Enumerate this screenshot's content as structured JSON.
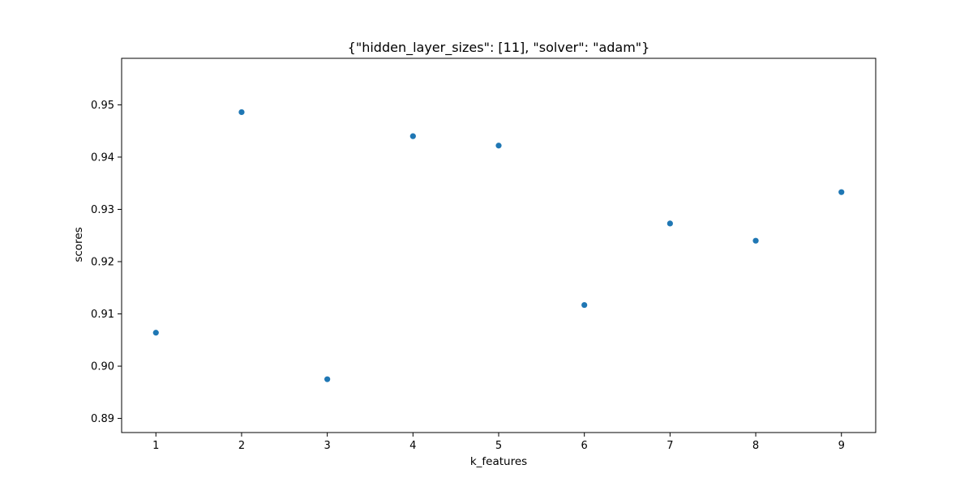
{
  "chart_data": {
    "type": "scatter",
    "title": "{\"hidden_layer_sizes\": [11], \"solver\": \"adam\"}",
    "xlabel": "k_features",
    "ylabel": "scores",
    "x": [
      1,
      2,
      3,
      4,
      5,
      6,
      7,
      8,
      9
    ],
    "y": [
      0.9064,
      0.9486,
      0.8975,
      0.944,
      0.9422,
      0.9117,
      0.9273,
      0.924,
      0.9333
    ],
    "xlim": [
      0.6,
      9.4
    ],
    "ylim": [
      0.8873,
      0.9589
    ],
    "xticks": [
      1,
      2,
      3,
      4,
      5,
      6,
      7,
      8,
      9
    ],
    "xtick_labels": [
      "1",
      "2",
      "3",
      "4",
      "5",
      "6",
      "7",
      "8",
      "9"
    ],
    "yticks": [
      0.89,
      0.9,
      0.91,
      0.92,
      0.93,
      0.94,
      0.95
    ],
    "ytick_labels": [
      "0.89",
      "0.90",
      "0.91",
      "0.92",
      "0.93",
      "0.94",
      "0.95"
    ],
    "grid": false,
    "legend": "none",
    "point_color": "#1f77b4"
  }
}
